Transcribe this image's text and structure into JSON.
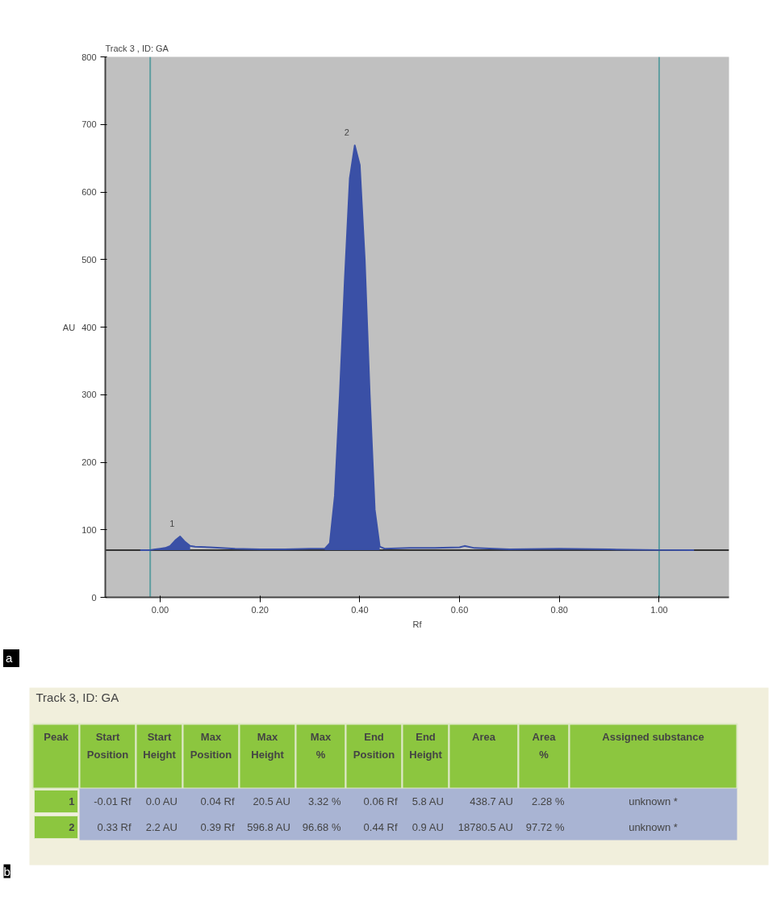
{
  "chart_data": [
    {
      "type": "line",
      "title": "Track 3 , ID: GA",
      "xlabel": "Rf",
      "ylabel": "AU",
      "x": [
        -0.04,
        -0.02,
        -0.01,
        0.0,
        0.01,
        0.02,
        0.03,
        0.04,
        0.05,
        0.06,
        0.07,
        0.1,
        0.15,
        0.2,
        0.25,
        0.3,
        0.33,
        0.34,
        0.35,
        0.36,
        0.37,
        0.38,
        0.39,
        0.4,
        0.41,
        0.42,
        0.43,
        0.44,
        0.45,
        0.5,
        0.55,
        0.6,
        0.61,
        0.63,
        0.7,
        0.8,
        0.9,
        1.0,
        1.07
      ],
      "series": [
        {
          "color": "#3a50a6",
          "values": [
            70,
            70,
            71,
            72,
            73,
            76,
            84,
            90,
            82,
            76,
            75,
            74,
            72,
            71,
            71,
            72,
            72,
            80,
            150,
            300,
            470,
            620,
            669,
            640,
            500,
            300,
            130,
            75,
            72,
            73,
            73,
            74,
            76,
            73,
            71,
            72,
            71,
            70,
            70
          ],
          "lower": [
            null,
            null,
            70,
            70,
            70,
            70,
            70,
            70,
            70,
            70,
            null,
            null,
            null,
            null,
            null,
            null,
            70,
            70,
            70,
            70,
            70,
            70,
            70,
            70,
            70,
            70,
            70,
            70,
            null,
            null,
            null,
            null,
            null,
            null,
            null,
            null,
            null,
            null,
            null
          ],
          "upper": [
            null,
            null,
            71,
            72,
            73,
            76,
            84,
            90,
            82,
            76,
            null,
            null,
            null,
            null,
            null,
            null,
            72,
            80,
            150,
            300,
            470,
            620,
            669,
            640,
            500,
            300,
            130,
            75,
            null,
            null,
            null,
            null,
            null,
            null,
            null,
            null,
            null,
            null,
            null
          ]
        }
      ],
      "xlim": [
        -0.11,
        1.14
      ],
      "ylim": [
        0,
        800
      ],
      "xticks": [
        {
          "value": 0,
          "label": "0.00"
        },
        {
          "value": 0.2,
          "label": "0.20"
        },
        {
          "value": 0.4,
          "label": "0.40"
        },
        {
          "value": 0.6,
          "label": "0.60"
        },
        {
          "value": 0.8,
          "label": "0.80"
        },
        {
          "value": 1,
          "label": "1.00"
        }
      ],
      "yticks": [
        0,
        100,
        200,
        300,
        400,
        500,
        600,
        700,
        800
      ],
      "ref_lines": [
        {
          "axis": "x",
          "value": -0.02,
          "color": "#5f9ea0"
        },
        {
          "axis": "x",
          "value": 1.0,
          "color": "#5f9ea0"
        },
        {
          "axis": "y",
          "value": 70,
          "color": "#333333"
        }
      ],
      "annotations": [
        "a",
        {
          "text": "1",
          "x": 0.04,
          "y": 90
        },
        {
          "text": "2",
          "x": 0.39,
          "y": 669
        }
      ],
      "grid": false,
      "marker": "none",
      "line_style": "solid"
    },
    {
      "type": "other",
      "title": "Track 3, ID: GA",
      "categories": [
        "Peak",
        "Start\nPosition",
        "Start\nHeight",
        "Max\nPosition",
        "Max\nHeight",
        "Max\n%",
        "End\nPosition",
        "End\nHeight",
        "Area",
        "Area\n%",
        "Assigned substance"
      ],
      "cell_labels": [
        [
          "1",
          "-0.01 Rf",
          "0.0 AU",
          "0.04 Rf",
          "20.5 AU",
          "3.32 %",
          "0.06 Rf",
          "5.8 AU",
          "438.7 AU",
          "2.28 %",
          "unknown *"
        ],
        [
          "2",
          "0.33 Rf",
          "2.2 AU",
          "0.39 Rf",
          "596.8 AU",
          "96.68 %",
          "0.44 Rf",
          "0.9 AU",
          "18780.5 AU",
          "97.72 %",
          "unknown *"
        ]
      ],
      "annotations": [
        "b"
      ]
    }
  ]
}
